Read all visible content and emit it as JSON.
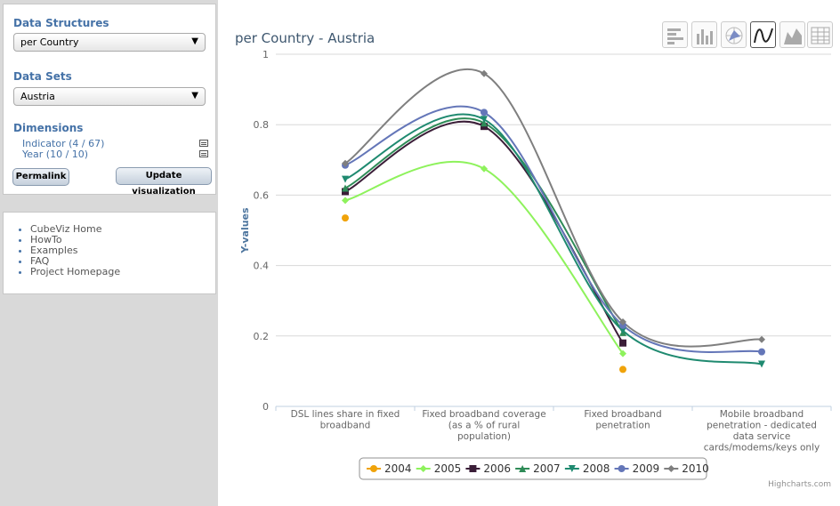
{
  "sidebar": {
    "data_structures_label": "Data Structures",
    "data_structure_value": "per Country",
    "data_sets_label": "Data Sets",
    "data_set_value": "Austria",
    "dimensions_label": "Dimensions",
    "dimensions": [
      {
        "label": "Indicator (4 / 67)"
      },
      {
        "label": "Year (10 / 10)"
      }
    ],
    "permalink_label": "Permalink",
    "update_label": "Update visualization",
    "links": [
      "CubeViz Home",
      "HowTo",
      "Examples",
      "FAQ",
      "Project Homepage"
    ]
  },
  "toolbar": {
    "buttons": [
      {
        "icon": "horizontal-bar-chart-icon",
        "active": false
      },
      {
        "icon": "column-chart-icon",
        "active": false
      },
      {
        "icon": "polar-chart-icon",
        "active": false
      },
      {
        "icon": "spline-chart-icon",
        "active": true
      },
      {
        "icon": "area-chart-icon",
        "active": false
      },
      {
        "icon": "table-icon",
        "active": false
      }
    ]
  },
  "credit": "Highcharts.com",
  "chart_data": {
    "type": "line",
    "title": "per Country - Austria",
    "xlabel": "",
    "ylabel": "Y-values",
    "ylim": [
      0,
      1
    ],
    "yticks": [
      "0",
      "0.2",
      "0.4",
      "0.6",
      "0.8",
      "1"
    ],
    "grid": true,
    "legend_position": "bottom",
    "categories": [
      [
        "DSL lines share in fixed",
        "broadband"
      ],
      [
        "Fixed broadband coverage",
        "(as a % of rural",
        "population)"
      ],
      [
        "Fixed broadband",
        "penetration"
      ],
      [
        "Mobile broadband",
        "penetration - dedicated",
        "data service",
        "cards/modems/keys only"
      ]
    ],
    "series": [
      {
        "name": "2004",
        "color": "#f0a30a",
        "marker": "circle",
        "values": [
          0.535,
          null,
          0.105,
          null
        ]
      },
      {
        "name": "2005",
        "color": "#8ef25c",
        "marker": "diamond",
        "values": [
          0.585,
          0.675,
          0.15,
          null
        ]
      },
      {
        "name": "2006",
        "color": "#3b1e38",
        "marker": "square",
        "values": [
          0.61,
          0.795,
          0.18,
          null
        ]
      },
      {
        "name": "2007",
        "color": "#2e8b57",
        "marker": "triangle",
        "values": [
          0.62,
          0.805,
          0.21,
          null
        ]
      },
      {
        "name": "2008",
        "color": "#1f8a70",
        "marker": "triangle-down",
        "values": [
          0.645,
          0.815,
          0.215,
          0.12
        ]
      },
      {
        "name": "2009",
        "color": "#6476b8",
        "marker": "circle",
        "values": [
          0.685,
          0.835,
          0.23,
          0.155
        ]
      },
      {
        "name": "2010",
        "color": "#7f7f7f",
        "marker": "diamond",
        "values": [
          0.69,
          0.945,
          0.24,
          0.19
        ]
      }
    ]
  }
}
